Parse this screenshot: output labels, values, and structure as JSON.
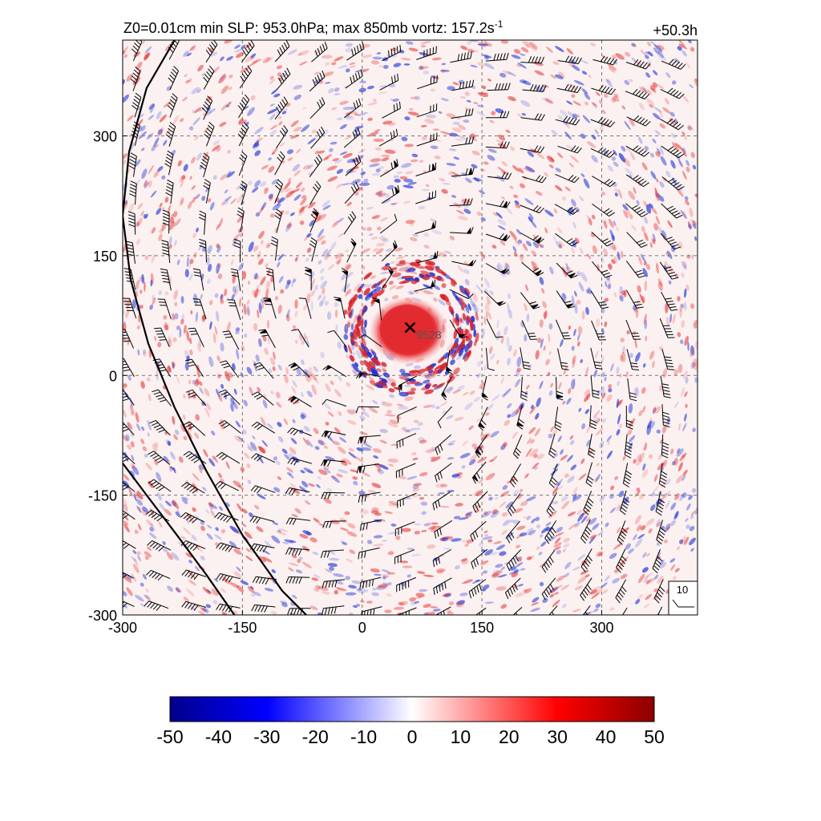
{
  "chart_data": {
    "type": "heatmap",
    "title_left": "Z0=0.01cm  min SLP: 953.0hPa; max 850mb vortz: 157.2s",
    "title_left_sup": "-1",
    "title_right": "+50.3h",
    "x_ticks": [
      "-300",
      "-150",
      "0",
      "150",
      "300"
    ],
    "y_ticks": [
      "-300",
      "-150",
      "0",
      "150",
      "300"
    ],
    "xlim": [
      -300,
      420
    ],
    "ylim": [
      -300,
      420
    ],
    "grid": true,
    "grid_style": "dashed",
    "center": {
      "x": 60,
      "y": 60,
      "label": "9528",
      "marker": "x"
    },
    "core_radius": 45,
    "reference_vector": {
      "label": "10"
    },
    "coastlines": [
      [
        [
          -235,
          420
        ],
        [
          -270,
          360
        ],
        [
          -292,
          280
        ],
        [
          -300,
          200
        ],
        [
          -290,
          120
        ],
        [
          -268,
          40
        ],
        [
          -235,
          -40
        ],
        [
          -195,
          -120
        ],
        [
          -150,
          -200
        ],
        [
          -100,
          -270
        ],
        [
          -70,
          -300
        ]
      ],
      [
        [
          -300,
          -110
        ],
        [
          -270,
          -150
        ],
        [
          -232,
          -200
        ],
        [
          -195,
          -250
        ],
        [
          -160,
          -300
        ]
      ]
    ],
    "colorbar": {
      "ticks": [
        "-50",
        "-40",
        "-30",
        "-20",
        "-10",
        "0",
        "10",
        "20",
        "30",
        "40",
        "50"
      ],
      "range": [
        -50,
        50
      ],
      "colors": [
        "#00008b",
        "#0000ff",
        "#ffffff",
        "#ff0000",
        "#8b0000"
      ]
    }
  }
}
